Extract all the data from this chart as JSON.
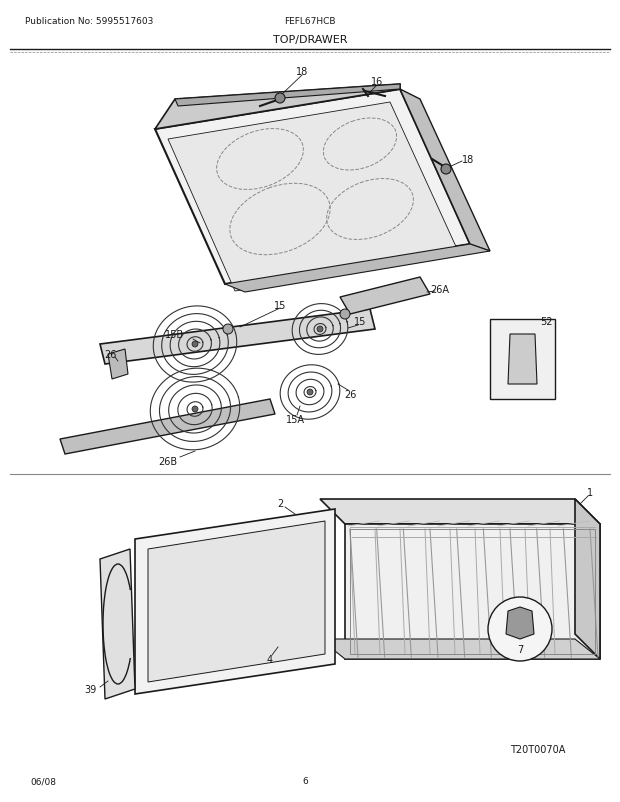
{
  "title": "TOP/DRAWER",
  "model": "FEFL67HCB",
  "pub_no": "Publication No: 5995517603",
  "date": "06/08",
  "page": "6",
  "diagram_id": "T20T0070A",
  "bg_color": "#ffffff",
  "line_color": "#1a1a1a",
  "text_color": "#1a1a1a"
}
